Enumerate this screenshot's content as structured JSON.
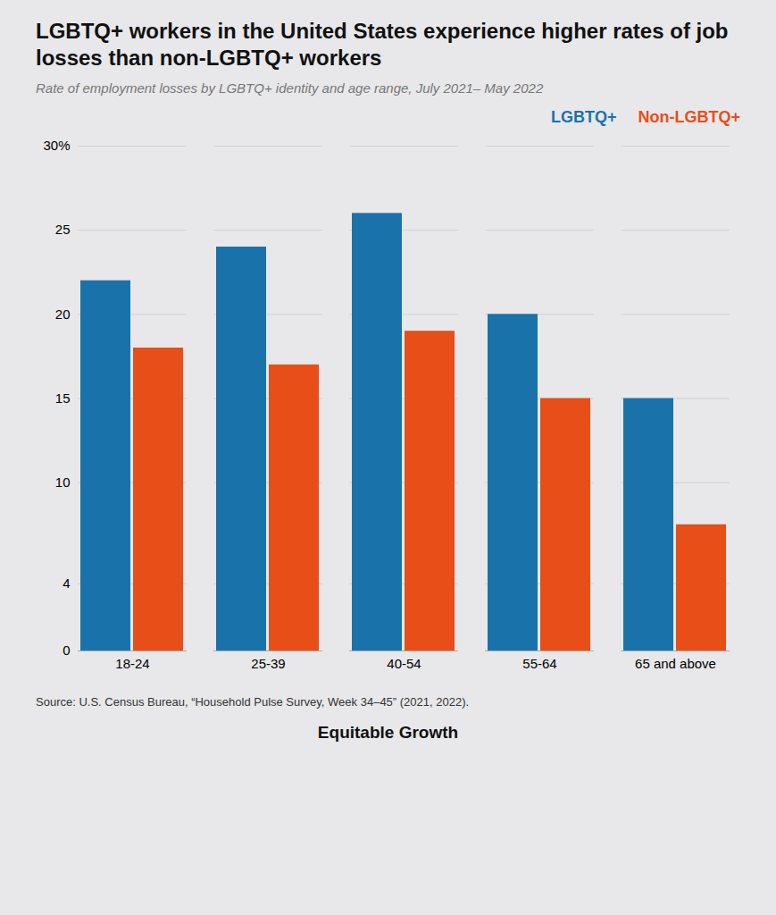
{
  "chart_data": {
    "type": "bar",
    "title": "LGBTQ+ workers in the United States experience higher rates of job losses than non-LGBTQ+ workers",
    "subtitle": "Rate of employment losses by LGBTQ+ identity and age range, July 2021– May 2022",
    "categories": [
      "18-24",
      "25-39",
      "40-54",
      "55-64",
      "65 and above"
    ],
    "series": [
      {
        "name": "LGBTQ+",
        "color": "#1a72aa",
        "values": [
          22,
          24,
          26,
          20,
          15
        ]
      },
      {
        "name": "Non-LGBTQ+",
        "color": "#e84e18",
        "values": [
          18,
          17,
          19,
          15,
          7.5
        ]
      }
    ],
    "ylim": [
      0,
      30
    ],
    "yticks": [
      0,
      4,
      10,
      15,
      20,
      25,
      {
        "value": 30,
        "label": "30%"
      }
    ],
    "grid": true,
    "legend": "upper right",
    "source": "Source: U.S. Census Bureau, “Household Pulse Survey, Week 34–45” (2021, 2022).",
    "annotations": [
      "Equitable Growth"
    ]
  }
}
